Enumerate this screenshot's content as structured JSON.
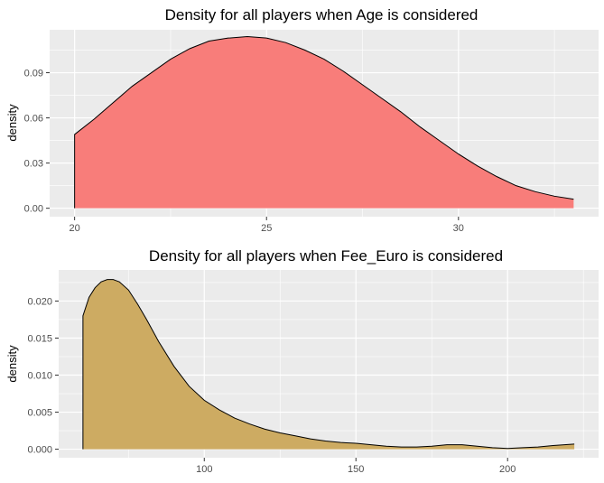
{
  "chart_data": [
    {
      "type": "area",
      "title": "Density for all players when Age is considered",
      "xlabel": "",
      "ylabel": "density",
      "xlim": [
        19.35,
        33.65
      ],
      "ylim": [
        -0.0056,
        0.1185
      ],
      "x_ticks": [
        20,
        25,
        30
      ],
      "x_tick_labels": [
        "20",
        "25",
        "30"
      ],
      "y_ticks": [
        0.0,
        0.03,
        0.06,
        0.09
      ],
      "y_tick_labels": [
        "0.00",
        "0.03",
        "0.06",
        "0.09"
      ],
      "grid": true,
      "fill_color": "#f87d7a",
      "line_color": "#000000",
      "panel_background": "#ebebeb",
      "gridline_color": "#ffffff",
      "series": [
        {
          "x": [
            20,
            20.5,
            21,
            21.5,
            22,
            22.5,
            23,
            23.5,
            24,
            24.5,
            25,
            25.5,
            26,
            26.5,
            27,
            27.5,
            28,
            28.5,
            29,
            29.5,
            30,
            30.5,
            31,
            31.5,
            32,
            32.5,
            33
          ],
          "values": [
            0.049,
            0.059,
            0.07,
            0.081,
            0.09,
            0.099,
            0.106,
            0.111,
            0.113,
            0.114,
            0.113,
            0.11,
            0.105,
            0.099,
            0.091,
            0.082,
            0.073,
            0.064,
            0.054,
            0.045,
            0.036,
            0.028,
            0.021,
            0.015,
            0.011,
            0.008,
            0.006
          ]
        }
      ]
    },
    {
      "type": "area",
      "title": "Density for all players when Fee_Euro is considered",
      "xlabel": "",
      "ylabel": "density",
      "xlim": [
        52,
        230
      ],
      "ylim": [
        -0.00115,
        0.0242
      ],
      "x_ticks": [
        100,
        150,
        200
      ],
      "x_tick_labels": [
        "100",
        "150",
        "200"
      ],
      "y_ticks": [
        0.0,
        0.005,
        0.01,
        0.015,
        0.02
      ],
      "y_tick_labels": [
        "0.000",
        "0.005",
        "0.010",
        "0.015",
        "0.020"
      ],
      "grid": true,
      "fill_color": "#cdab62",
      "line_color": "#000000",
      "panel_background": "#ebebeb",
      "gridline_color": "#ffffff",
      "series": [
        {
          "x": [
            60,
            62,
            64,
            66,
            68,
            70,
            72,
            75,
            78,
            81,
            85,
            90,
            95,
            100,
            105,
            110,
            115,
            120,
            125,
            130,
            135,
            140,
            145,
            150,
            155,
            160,
            165,
            170,
            175,
            180,
            185,
            190,
            195,
            200,
            205,
            210,
            215,
            222
          ],
          "values": [
            0.018,
            0.0205,
            0.0218,
            0.0226,
            0.0229,
            0.0229,
            0.0226,
            0.0215,
            0.0196,
            0.0175,
            0.0145,
            0.0112,
            0.0085,
            0.0066,
            0.0053,
            0.0042,
            0.0034,
            0.0027,
            0.0022,
            0.0018,
            0.0014,
            0.0011,
            0.0009,
            0.0008,
            0.0006,
            0.0004,
            0.0003,
            0.0003,
            0.0004,
            0.0006,
            0.0006,
            0.0004,
            0.0002,
            0.0001,
            0.0002,
            0.0003,
            0.0005,
            0.0007
          ]
        }
      ]
    }
  ]
}
